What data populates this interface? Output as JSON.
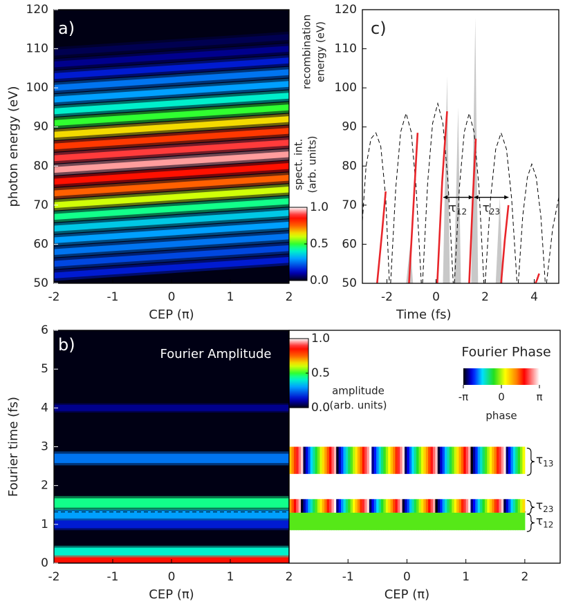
{
  "chart_data": [
    {
      "type": "stripes",
      "label": "a)",
      "xlabel": "CEP (π)",
      "ylabel": "photon energy (eV)",
      "xlim": [
        -2,
        2
      ],
      "ylim": [
        50,
        120
      ],
      "xticks": [
        -2,
        -1,
        0,
        1,
        2
      ],
      "yticks": [
        50,
        60,
        70,
        80,
        90,
        100,
        110,
        120
      ],
      "stripes": {
        "start": [
          52,
          55,
          58,
          61,
          64,
          67,
          70,
          73,
          76,
          79,
          82,
          85,
          88,
          91,
          94,
          97,
          100,
          103,
          106,
          109
        ],
        "end": [
          56,
          59,
          62,
          65,
          68,
          71,
          74,
          77,
          80,
          83,
          86,
          89,
          92,
          95,
          98,
          101,
          104,
          107,
          110,
          113
        ],
        "intensity": [
          0.15,
          0.2,
          0.25,
          0.3,
          0.35,
          0.45,
          0.6,
          0.75,
          0.85,
          0.95,
          0.9,
          0.8,
          0.65,
          0.5,
          0.4,
          0.3,
          0.25,
          0.15,
          0.08,
          0.04
        ]
      },
      "colorbar": {
        "label": [
          "spect. int.",
          "(arb. units)"
        ],
        "lim": [
          0,
          1
        ],
        "ticks": [
          {
            "value": 0,
            "label": "0.0"
          },
          {
            "value": 0.5,
            "label": "0.5"
          },
          {
            "value": 1,
            "label": "1.0"
          }
        ]
      }
    },
    {
      "type": "line",
      "label": "c)",
      "xlabel": "Time (fs)",
      "ylabel": [
        "recombination",
        "energy (eV)"
      ],
      "xlim": [
        -3,
        5
      ],
      "ylim": [
        50,
        120
      ],
      "xticks": [
        -2,
        0,
        2,
        4
      ],
      "yticks": [
        50,
        60,
        70,
        80,
        90,
        100,
        110,
        120
      ],
      "series": [
        {
          "color": "#000000",
          "style": "dashed",
          "x": [
            -3.0,
            -2.85,
            -2.65,
            -2.45,
            -2.25,
            -2.05,
            -1.9,
            null,
            -1.85,
            -1.64,
            -1.44,
            -1.22,
            -1.01,
            -0.81,
            -0.6,
            null,
            -0.55,
            -0.34,
            -0.14,
            0.07,
            0.28,
            0.49,
            0.7,
            null,
            0.75,
            0.95,
            1.15,
            1.35,
            1.55,
            1.75,
            1.95,
            null,
            2.0,
            2.22,
            2.43,
            2.65,
            2.87,
            3.08,
            3.3,
            null,
            3.35,
            3.53,
            3.72,
            3.9,
            4.08,
            4.27,
            4.45,
            null,
            4.5,
            4.75,
            5.0
          ],
          "values": [
            66,
            80,
            87,
            88.5,
            85,
            72,
            50,
            null,
            50,
            74.4,
            88.7,
            93.5,
            88.7,
            74.4,
            50,
            null,
            50,
            75.8,
            90.9,
            96,
            90.9,
            75.8,
            50,
            null,
            50,
            74.4,
            88.7,
            93.5,
            88.7,
            74.4,
            50,
            null,
            50,
            71.6,
            84.3,
            88.5,
            84.3,
            71.6,
            50,
            null,
            50,
            67.1,
            77.1,
            80.5,
            77.1,
            67.1,
            50,
            null,
            50,
            64,
            72
          ]
        },
        {
          "color": "#e8252a",
          "style": "solid",
          "x": [
            -2.4,
            -2.2,
            -2.05,
            null,
            -1.1,
            -0.9,
            -0.75,
            null,
            0.05,
            0.25,
            0.45,
            null,
            1.35,
            1.5,
            1.62,
            null,
            2.65,
            2.8,
            2.95,
            null,
            4.05,
            4.12,
            4.2
          ],
          "values": [
            50,
            63,
            73.5,
            null,
            50,
            72,
            88.5,
            null,
            50,
            76,
            94,
            null,
            50,
            72,
            87,
            null,
            50,
            61,
            70,
            null,
            50,
            51,
            52.5
          ]
        }
      ],
      "spikes": {
        "color": "#c8c8c8",
        "x": [
          -1.05,
          0.45,
          0.9,
          1.6,
          2.6
        ],
        "values": [
          60,
          103,
          95,
          118,
          72
        ]
      },
      "intervals": [
        {
          "symbol": "τ",
          "sub": "12",
          "x": [
            0.3,
            1.5
          ],
          "y": 72
        },
        {
          "symbol": "τ",
          "sub": "23",
          "x": [
            1.55,
            2.95
          ],
          "y": 72
        }
      ]
    },
    {
      "type": "bands",
      "label": "b)",
      "title": "Fourier Amplitude",
      "xlabel": "CEP (π)",
      "ylabel": "Fourier time (fs)",
      "xlim": [
        -2,
        2
      ],
      "ylim": [
        0,
        6
      ],
      "xticks": [
        -2,
        -1,
        0,
        1,
        2
      ],
      "yticks": [
        0,
        1,
        2,
        3,
        4,
        5,
        6
      ],
      "bands": {
        "center": [
          0.12,
          0.3,
          1.0,
          1.25,
          1.55,
          2.7,
          4.0
        ],
        "width": [
          0.1,
          0.1,
          0.1,
          0.1,
          0.12,
          0.12,
          0.08
        ],
        "intensity": [
          0.85,
          0.4,
          0.15,
          0.3,
          0.45,
          0.25,
          0.08
        ]
      },
      "dashed_line": 1.32,
      "colorbar": {
        "label": [
          "amplitude",
          "(arb. units)"
        ],
        "lim": [
          0,
          1
        ],
        "ticks": [
          {
            "value": 0,
            "label": "0.0"
          },
          {
            "value": 0.5,
            "label": "0.5"
          },
          {
            "value": 1,
            "label": "1.0"
          }
        ]
      }
    },
    {
      "type": "phase",
      "title": "Fourier Phase",
      "xlabel": "CEP (π)",
      "xlim": [
        -2,
        2.6
      ],
      "ylim": [
        0,
        6
      ],
      "xticks": [
        -1,
        0,
        1,
        2
      ],
      "bands": [
        {
          "ymin": 2.3,
          "ymax": 3.0,
          "periods": 7,
          "phase_start": 0.5,
          "label": {
            "symbol": "τ",
            "sub": "13"
          }
        },
        {
          "ymin": 1.3,
          "ymax": 1.65,
          "periods": 7,
          "phase_start": 0.8,
          "label": {
            "symbol": "τ",
            "sub": "23"
          }
        },
        {
          "ymin": 0.85,
          "ymax": 1.3,
          "periods": 0,
          "phase_start": -0.4,
          "label": {
            "symbol": "τ",
            "sub": "12"
          }
        }
      ],
      "colorbar": {
        "label": "phase",
        "lim": [
          -3.14159,
          3.14159
        ],
        "ticks": [
          {
            "value": -3.14159,
            "label": "-π"
          },
          0,
          {
            "value": 3.14159,
            "label": "π"
          }
        ]
      }
    }
  ]
}
